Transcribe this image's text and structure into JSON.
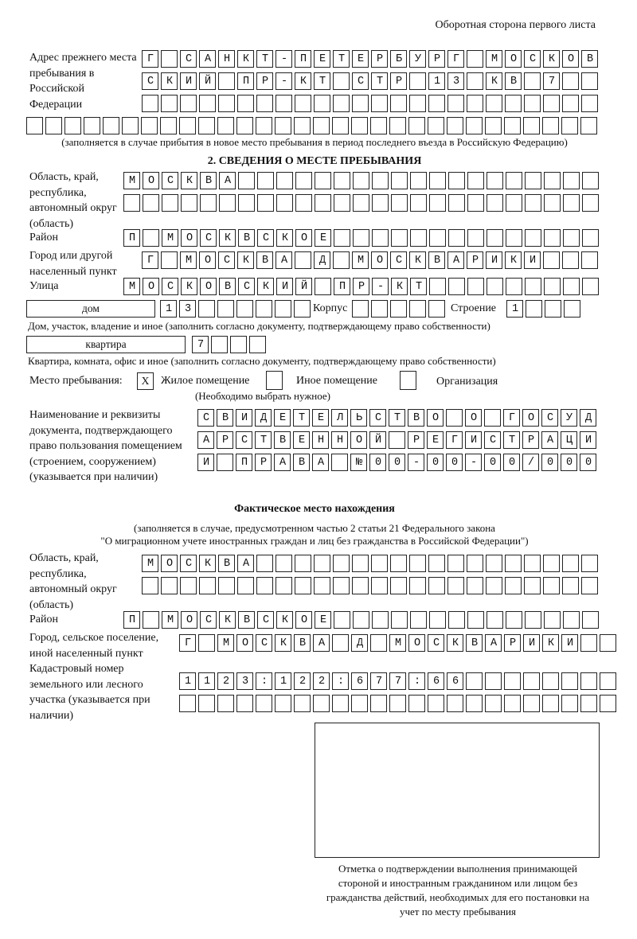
{
  "header": "Оборотная сторона первого листа",
  "prev_address": {
    "label": "Адрес прежнего места пребывания в Российской Федерации",
    "rows": [
      "Г САНКТ-ПЕТЕРБУРГ МОСКОВ",
      "СКИЙ ПР-КТ СТР 13 КВ 7",
      "",
      ""
    ],
    "note": "(заполняется в случае прибытия в новое место пребывания в период последнего въезда в Российскую Федерацию)"
  },
  "section2": {
    "title": "2. СВЕДЕНИЯ О МЕСТЕ ПРЕБЫВАНИЯ",
    "region_label": "Область, край, республика, автономный округ (область)",
    "region_rows": [
      "МОСКВА",
      ""
    ],
    "district_label": "Район",
    "district": "П МОСКВСКОЕ",
    "city_label": "Город или другой населенный пункт",
    "city": "Г МОСКВА Д МОСКВАРИКИ",
    "street_label": "Улица",
    "street": "МОСКОВСКИЙ ПР-КТ",
    "house_type": "дом",
    "house": "13",
    "korpus_label": "Корпус",
    "korpus": "",
    "building_label": "Строение",
    "building": "1",
    "house_note": "Дом, участок, владение и иное (заполнить согласно документу, подтверждающему право собственности)",
    "apt_type": "квартира",
    "apt": "7",
    "apt_note": "Квартира, комната, офис и иное (заполнить согласно документу, подтверждающему право собственности)",
    "place_label": "Место пребывания:",
    "opt_residential": {
      "label": "Жилое помещение",
      "mark": "X",
      "checked": true
    },
    "opt_other": {
      "label": "Иное помещение",
      "mark": "",
      "checked": false
    },
    "opt_org": {
      "label": "Организация",
      "mark": "",
      "checked": false
    },
    "choose_note": "(Необходимо выбрать нужное)",
    "doc_label": "Наименование и реквизиты документа, подтверждающего право пользования помещением (строением, сооружением) (указывается при наличии)",
    "doc_rows": [
      "СВИДЕТЕЛЬСТВО О ГОСУД",
      "АРСТВЕННОЙ РЕГИСТРАЦИ",
      "И ПРАВА №00-00-00/000"
    ]
  },
  "actual": {
    "title": "Фактическое место нахождения",
    "note1": "(заполняется в случае, предусмотренном частью 2 статьи 21 Федерального закона",
    "note2": "\"О миграционном учете иностранных граждан и лиц без гражданства в Российской Федерации\")",
    "region_label": "Область, край, республика, автономный округ (область)",
    "region_rows": [
      "МОСКВА",
      ""
    ],
    "district_label": "Район",
    "district": "П МОСКВСКОЕ",
    "city_label": "Город, сельское поселение, иной населенный пункт",
    "city": "Г МОСКВА Д МОСКВАРИКИ",
    "cadastral_label": "Кадастровый номер земельного или лесного участка (указывается при наличии)",
    "cadastral_rows": [
      "1123:122:677:66",
      ""
    ]
  },
  "stamp_caption": "Отметка о подтверждении выполнения принимающей стороной и иностранным гражданином или лицом без гражданства действий, необходимых для его постановки на учет по месту пребывания"
}
